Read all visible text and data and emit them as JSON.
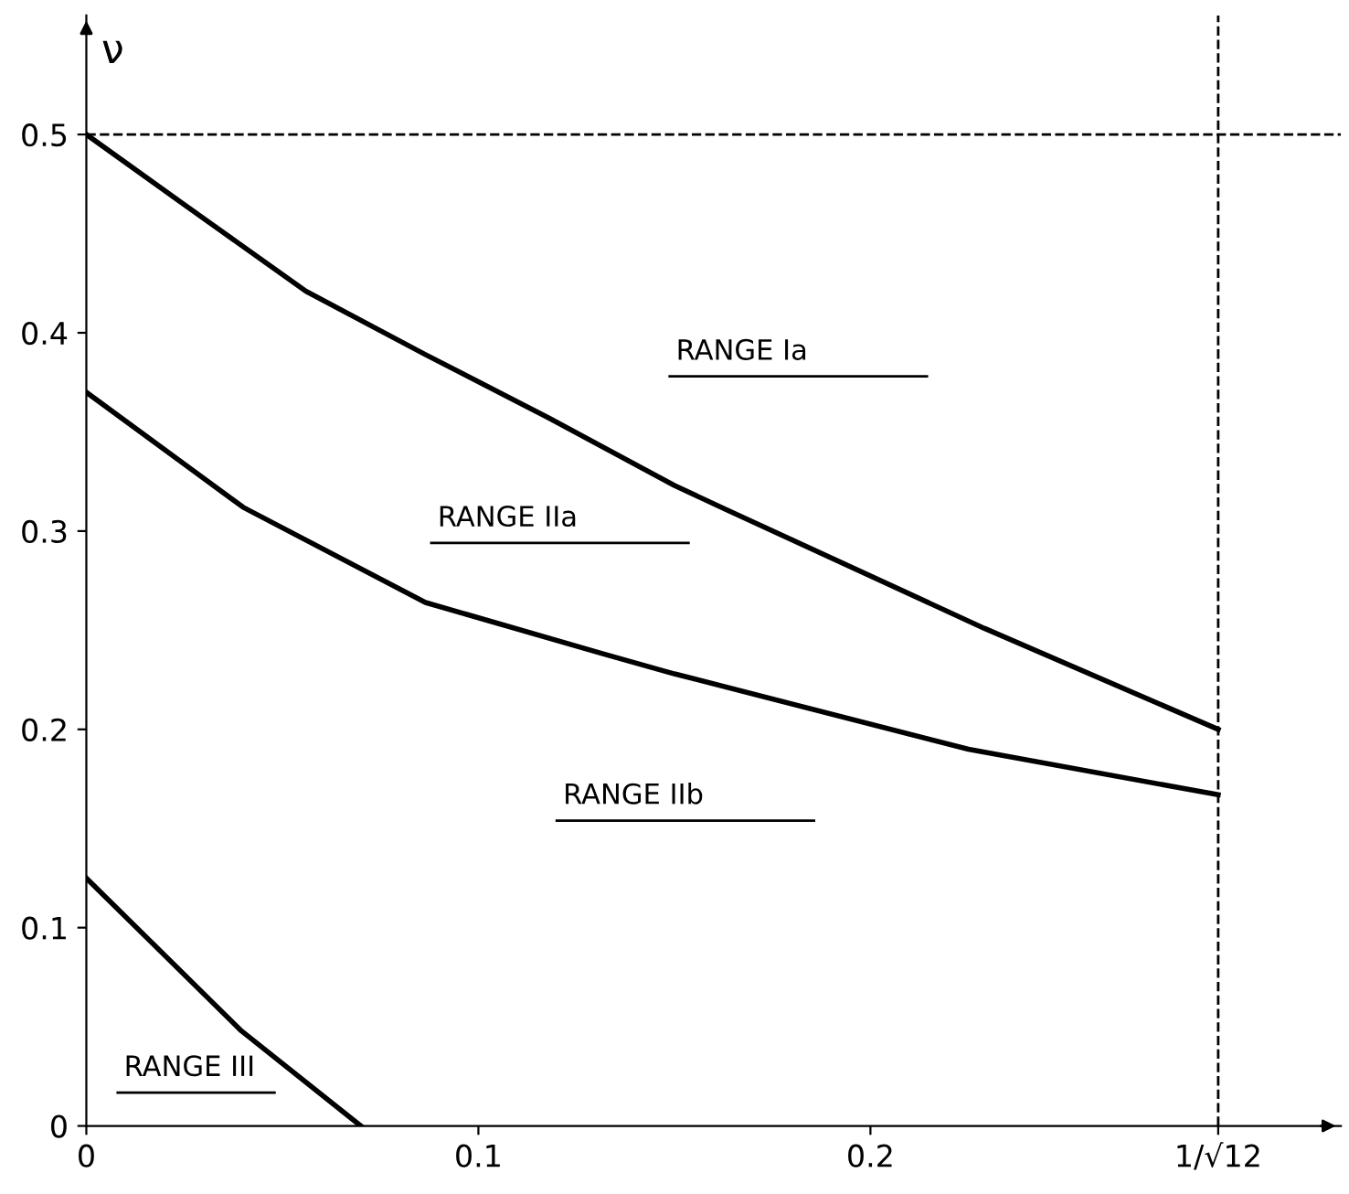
{
  "chart_data": {
    "type": "line",
    "ylabel": "ν",
    "series": [
      {
        "color": "#000000",
        "x": [
          0,
          0.0247,
          0.056,
          0.0865,
          0.118,
          0.15,
          0.163,
          0.229,
          0.2887
        ],
        "values": [
          0.5,
          0.465,
          0.421,
          0.389,
          0.357,
          0.323,
          0.311,
          0.251,
          0.2
        ]
      },
      {
        "color": "#000000",
        "x": [
          0,
          0.04,
          0.0865,
          0.132,
          0.15,
          0.225,
          0.2887
        ],
        "values": [
          0.37,
          0.312,
          0.264,
          0.238,
          0.228,
          0.19,
          0.167
        ]
      },
      {
        "color": "#000000",
        "x": [
          0,
          0.0395,
          0.07
        ],
        "values": [
          0.125,
          0.048,
          0
        ]
      }
    ],
    "xlim": [
      0,
      0.32
    ],
    "ylim": [
      0,
      0.56
    ],
    "xticks": [
      0,
      0.1,
      0.2,
      {
        "value": 0.2887,
        "label": "1/√12"
      }
    ],
    "yticks": [
      0,
      0.1,
      0.2,
      0.3,
      0.4,
      0.5
    ],
    "ref_lines": [
      {
        "axis": "y",
        "value": 0.5,
        "line_style": "dashed"
      },
      {
        "axis": "x",
        "value": 0.2887,
        "line_style": "dashed"
      }
    ],
    "annotations": [
      "RANGE Ia",
      "RANGE IIa",
      "RANGE IIb",
      "RANGE III"
    ],
    "grid": false,
    "legend": false,
    "marker": "none",
    "line_style": "solid"
  }
}
